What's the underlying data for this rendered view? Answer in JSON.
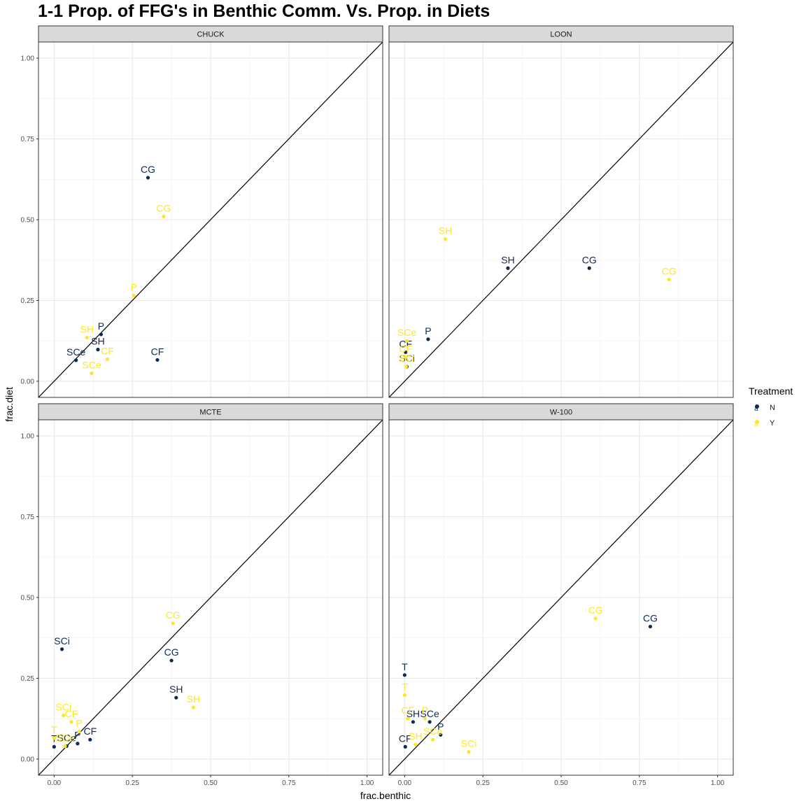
{
  "chart_data": {
    "type": "scatter",
    "title": "1-1 Prop. of FFG's in Benthic Comm. Vs. Prop. in Diets",
    "xlabel": "frac.benthic",
    "ylabel": "frac.diet",
    "xlim": [
      -0.05,
      1.05
    ],
    "ylim": [
      -0.05,
      1.05
    ],
    "x_ticks": [
      "0.00",
      "0.25",
      "0.50",
      "0.75",
      "1.00"
    ],
    "y_ticks": [
      "0.00",
      "0.25",
      "0.50",
      "0.75",
      "1.00"
    ],
    "reference_line": "y = x",
    "grid": true,
    "legend": {
      "title": "Treatment",
      "position": "right",
      "entries": [
        {
          "name": "N",
          "color": "#0d2a54"
        },
        {
          "name": "Y",
          "color": "#fde725"
        }
      ]
    },
    "panels": [
      {
        "name": "CHUCK",
        "points": [
          {
            "label": "CG",
            "treatment": "N",
            "x": 0.3,
            "y": 0.63
          },
          {
            "label": "P",
            "treatment": "N",
            "x": 0.15,
            "y": 0.145
          },
          {
            "label": "SH",
            "treatment": "N",
            "x": 0.14,
            "y": 0.098
          },
          {
            "label": "SCe",
            "treatment": "N",
            "x": 0.07,
            "y": 0.065
          },
          {
            "label": "CF",
            "treatment": "N",
            "x": 0.33,
            "y": 0.066
          },
          {
            "label": "CG",
            "treatment": "Y",
            "x": 0.35,
            "y": 0.51
          },
          {
            "label": "P",
            "treatment": "Y",
            "x": 0.255,
            "y": 0.265
          },
          {
            "label": "SH",
            "treatment": "Y",
            "x": 0.105,
            "y": 0.135
          },
          {
            "label": "CF",
            "treatment": "Y",
            "x": 0.17,
            "y": 0.068
          },
          {
            "label": "SCe",
            "treatment": "Y",
            "x": 0.12,
            "y": 0.025
          }
        ]
      },
      {
        "name": "LOON",
        "points": [
          {
            "label": "SH",
            "treatment": "N",
            "x": 0.33,
            "y": 0.35
          },
          {
            "label": "CG",
            "treatment": "N",
            "x": 0.59,
            "y": 0.35
          },
          {
            "label": "P",
            "treatment": "N",
            "x": 0.075,
            "y": 0.13
          },
          {
            "label": "CF",
            "treatment": "N",
            "x": 0.003,
            "y": 0.09
          },
          {
            "label": "SCi",
            "treatment": "N",
            "x": 0.007,
            "y": 0.045
          },
          {
            "label": "SH",
            "treatment": "Y",
            "x": 0.13,
            "y": 0.44
          },
          {
            "label": "CG",
            "treatment": "Y",
            "x": 0.845,
            "y": 0.315
          },
          {
            "label": "SCe",
            "treatment": "Y",
            "x": 0.007,
            "y": 0.125
          },
          {
            "label": "CF",
            "treatment": "Y",
            "x": 0.003,
            "y": 0.075
          },
          {
            "label": "SCi",
            "treatment": "Y",
            "x": 0.005,
            "y": 0.045
          }
        ]
      },
      {
        "name": "MCTE",
        "points": [
          {
            "label": "SCi",
            "treatment": "N",
            "x": 0.025,
            "y": 0.34
          },
          {
            "label": "CG",
            "treatment": "N",
            "x": 0.375,
            "y": 0.305
          },
          {
            "label": "SH",
            "treatment": "N",
            "x": 0.39,
            "y": 0.19
          },
          {
            "label": "CF",
            "treatment": "N",
            "x": 0.115,
            "y": 0.06
          },
          {
            "label": "P",
            "treatment": "N",
            "x": 0.075,
            "y": 0.048
          },
          {
            "label": "SCe",
            "treatment": "N",
            "x": 0.04,
            "y": 0.04
          },
          {
            "label": "T",
            "treatment": "N",
            "x": 0.0,
            "y": 0.038
          },
          {
            "label": "CG",
            "treatment": "Y",
            "x": 0.38,
            "y": 0.42
          },
          {
            "label": "SH",
            "treatment": "Y",
            "x": 0.445,
            "y": 0.16
          },
          {
            "label": "SCi",
            "treatment": "Y",
            "x": 0.03,
            "y": 0.135
          },
          {
            "label": "CF",
            "treatment": "Y",
            "x": 0.055,
            "y": 0.115
          },
          {
            "label": "P",
            "treatment": "Y",
            "x": 0.08,
            "y": 0.085
          },
          {
            "label": "T",
            "treatment": "Y",
            "x": 0.0,
            "y": 0.065
          },
          {
            "label": "SCe",
            "treatment": "Y",
            "x": 0.035,
            "y": 0.04
          }
        ]
      },
      {
        "name": "W-100",
        "points": [
          {
            "label": "CG",
            "treatment": "N",
            "x": 0.785,
            "y": 0.41
          },
          {
            "label": "T",
            "treatment": "N",
            "x": 0.0,
            "y": 0.26
          },
          {
            "label": "SH",
            "treatment": "N",
            "x": 0.027,
            "y": 0.115
          },
          {
            "label": "SCe",
            "treatment": "N",
            "x": 0.08,
            "y": 0.115
          },
          {
            "label": "P",
            "treatment": "N",
            "x": 0.115,
            "y": 0.075
          },
          {
            "label": "CF",
            "treatment": "N",
            "x": 0.002,
            "y": 0.038
          },
          {
            "label": "CG",
            "treatment": "Y",
            "x": 0.61,
            "y": 0.435
          },
          {
            "label": "T",
            "treatment": "Y",
            "x": 0.0,
            "y": 0.198
          },
          {
            "label": "P",
            "treatment": "Y",
            "x": 0.065,
            "y": 0.125
          },
          {
            "label": "CF",
            "treatment": "Y",
            "x": 0.01,
            "y": 0.125
          },
          {
            "label": "SCe",
            "treatment": "Y",
            "x": 0.09,
            "y": 0.06
          },
          {
            "label": "SH",
            "treatment": "Y",
            "x": 0.035,
            "y": 0.045
          },
          {
            "label": "SCi",
            "treatment": "Y",
            "x": 0.205,
            "y": 0.022
          }
        ]
      }
    ]
  }
}
